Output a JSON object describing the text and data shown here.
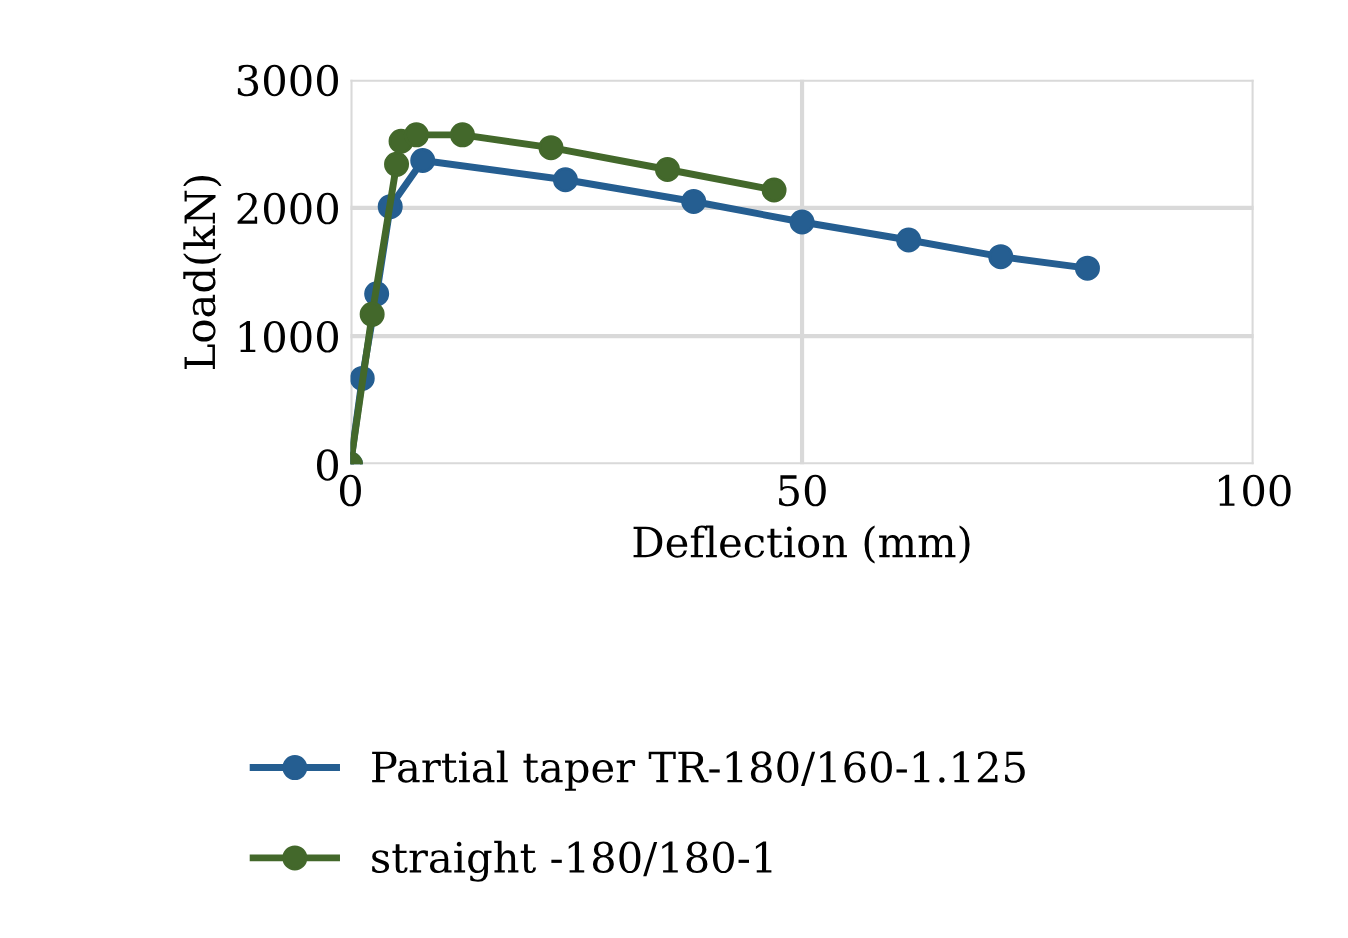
{
  "chart_data": {
    "type": "line",
    "xlabel": "Deflection (mm)",
    "ylabel": "Load(kN)",
    "xlim": [
      0,
      100
    ],
    "xticks": [
      0,
      50,
      100
    ],
    "ylim": [
      0,
      3000
    ],
    "yticks": [
      0,
      1000,
      2000,
      3000
    ],
    "grid": true,
    "legend": "bottom",
    "marker": "circle",
    "line_style": "solid",
    "series": [
      {
        "name": "Partial taper TR-180/160-1.125",
        "color": "#255e91",
        "x": [
          0,
          1.3,
          2.9,
          4.4,
          8,
          23.8,
          38,
          50,
          61.8,
          72,
          81.6
        ],
        "values": [
          0,
          670,
          1330,
          2010,
          2370,
          2220,
          2050,
          1890,
          1750,
          1620,
          1530
        ]
      },
      {
        "name": "straight -180/180-1",
        "color": "#43682b",
        "x": [
          0,
          2.4,
          5.1,
          5.6,
          7.3,
          12.4,
          22.2,
          35.1,
          46.9
        ],
        "values": [
          0,
          1170,
          2340,
          2520,
          2570,
          2570,
          2470,
          2300,
          2140
        ]
      }
    ]
  }
}
